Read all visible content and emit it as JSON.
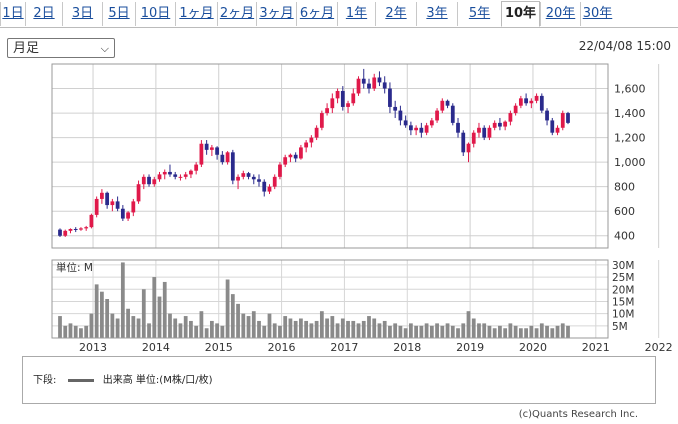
{
  "tabs": [
    "1日",
    "2日",
    "3日",
    "5日",
    "10日",
    "1ヶ月",
    "2ヶ月",
    "3ヶ月",
    "6ヶ月",
    "1年",
    "2年",
    "3年",
    "5年",
    "10年",
    "20年",
    "30年"
  ],
  "active_tab": "10年",
  "period_select": "月足",
  "timestamp": "22/04/08 15:00",
  "legend": {
    "prefix": "下段:",
    "series": "出来高 単位:(M株/口/枚)"
  },
  "copyright": "(c)Quants Research Inc.",
  "colors": {
    "up": "#e0194a",
    "down": "#2a2a8c",
    "volume": "#8a8a8a"
  },
  "chart_data": [
    {
      "type": "candlestick",
      "ylim": [
        300,
        1800
      ],
      "y_ticks": [
        "1,600",
        "1,400",
        "1,200",
        "1,000",
        "800",
        "600",
        "400"
      ],
      "y_tick_values": [
        1600,
        1400,
        1200,
        1000,
        800,
        600,
        400
      ],
      "x_tick_labels": [
        "2013",
        "2014",
        "2015",
        "2016",
        "2017",
        "2018",
        "2019",
        "2020",
        "2021",
        "2022"
      ],
      "x_start": "2012-06",
      "ohlc": [
        [
          450,
          460,
          390,
          400
        ],
        [
          400,
          450,
          390,
          440
        ],
        [
          440,
          460,
          420,
          455
        ],
        [
          455,
          470,
          430,
          450
        ],
        [
          450,
          470,
          440,
          460
        ],
        [
          460,
          480,
          440,
          470
        ],
        [
          470,
          580,
          460,
          570
        ],
        [
          570,
          720,
          550,
          700
        ],
        [
          700,
          780,
          660,
          750
        ],
        [
          750,
          760,
          620,
          650
        ],
        [
          650,
          700,
          600,
          680
        ],
        [
          680,
          720,
          600,
          620
        ],
        [
          620,
          650,
          520,
          540
        ],
        [
          540,
          600,
          520,
          590
        ],
        [
          590,
          700,
          560,
          680
        ],
        [
          680,
          850,
          660,
          820
        ],
        [
          820,
          900,
          780,
          880
        ],
        [
          880,
          900,
          800,
          820
        ],
        [
          820,
          880,
          800,
          860
        ],
        [
          860,
          920,
          840,
          900
        ],
        [
          900,
          940,
          860,
          920
        ],
        [
          920,
          980,
          880,
          900
        ],
        [
          900,
          920,
          860,
          880
        ],
        [
          880,
          900,
          850,
          880
        ],
        [
          880,
          920,
          860,
          900
        ],
        [
          900,
          940,
          870,
          930
        ],
        [
          930,
          1000,
          900,
          980
        ],
        [
          980,
          1180,
          960,
          1150
        ],
        [
          1150,
          1180,
          1060,
          1100
        ],
        [
          1100,
          1140,
          1050,
          1120
        ],
        [
          1120,
          1130,
          1020,
          1060
        ],
        [
          1060,
          1090,
          980,
          1000
        ],
        [
          1000,
          1090,
          980,
          1080
        ],
        [
          1080,
          1100,
          820,
          850
        ],
        [
          850,
          900,
          780,
          880
        ],
        [
          880,
          930,
          860,
          910
        ],
        [
          910,
          920,
          860,
          880
        ],
        [
          880,
          900,
          820,
          860
        ],
        [
          860,
          900,
          800,
          840
        ],
        [
          840,
          860,
          720,
          760
        ],
        [
          760,
          820,
          740,
          800
        ],
        [
          800,
          900,
          780,
          880
        ],
        [
          880,
          1000,
          860,
          980
        ],
        [
          980,
          1060,
          960,
          1040
        ],
        [
          1040,
          1070,
          1000,
          1060
        ],
        [
          1060,
          1080,
          1000,
          1030
        ],
        [
          1030,
          1140,
          1020,
          1120
        ],
        [
          1120,
          1180,
          1080,
          1160
        ],
        [
          1160,
          1220,
          1120,
          1200
        ],
        [
          1200,
          1300,
          1180,
          1280
        ],
        [
          1280,
          1420,
          1260,
          1400
        ],
        [
          1400,
          1480,
          1380,
          1440
        ],
        [
          1440,
          1560,
          1400,
          1520
        ],
        [
          1520,
          1600,
          1480,
          1580
        ],
        [
          1580,
          1620,
          1420,
          1450
        ],
        [
          1450,
          1500,
          1400,
          1480
        ],
        [
          1480,
          1600,
          1460,
          1560
        ],
        [
          1560,
          1700,
          1540,
          1680
        ],
        [
          1680,
          1760,
          1600,
          1640
        ],
        [
          1640,
          1680,
          1560,
          1600
        ],
        [
          1600,
          1720,
          1580,
          1690
        ],
        [
          1690,
          1740,
          1620,
          1650
        ],
        [
          1650,
          1700,
          1560,
          1600
        ],
        [
          1600,
          1650,
          1400,
          1450
        ],
        [
          1450,
          1500,
          1360,
          1420
        ],
        [
          1420,
          1460,
          1300,
          1340
        ],
        [
          1340,
          1380,
          1280,
          1300
        ],
        [
          1300,
          1330,
          1220,
          1260
        ],
        [
          1260,
          1300,
          1220,
          1280
        ],
        [
          1280,
          1320,
          1200,
          1240
        ],
        [
          1240,
          1320,
          1220,
          1300
        ],
        [
          1300,
          1360,
          1280,
          1340
        ],
        [
          1340,
          1440,
          1320,
          1420
        ],
        [
          1420,
          1520,
          1400,
          1500
        ],
        [
          1500,
          1510,
          1440,
          1460
        ],
        [
          1460,
          1480,
          1300,
          1320
        ],
        [
          1320,
          1360,
          1200,
          1240
        ],
        [
          1240,
          1260,
          1050,
          1080
        ],
        [
          1080,
          1160,
          1000,
          1150
        ],
        [
          1150,
          1260,
          1120,
          1240
        ],
        [
          1240,
          1320,
          1200,
          1280
        ],
        [
          1280,
          1300,
          1180,
          1200
        ],
        [
          1200,
          1300,
          1180,
          1280
        ],
        [
          1280,
          1340,
          1260,
          1320
        ],
        [
          1320,
          1360,
          1260,
          1290
        ],
        [
          1290,
          1340,
          1260,
          1330
        ],
        [
          1330,
          1420,
          1300,
          1400
        ],
        [
          1400,
          1480,
          1380,
          1460
        ],
        [
          1460,
          1540,
          1440,
          1520
        ],
        [
          1520,
          1560,
          1460,
          1480
        ],
        [
          1480,
          1520,
          1440,
          1500
        ],
        [
          1500,
          1560,
          1480,
          1540
        ],
        [
          1540,
          1560,
          1400,
          1420
        ],
        [
          1420,
          1440,
          1300,
          1340
        ],
        [
          1340,
          1360,
          1220,
          1240
        ],
        [
          1240,
          1300,
          1220,
          1280
        ],
        [
          1280,
          1420,
          1260,
          1400
        ],
        [
          1400,
          1410,
          1310,
          1320
        ]
      ],
      "volume_ylim": [
        0,
        32
      ],
      "volume_ticks": [
        "30M",
        "25M",
        "20M",
        "15M",
        "10M",
        "5M"
      ],
      "volume_tick_values": [
        30,
        25,
        20,
        15,
        10,
        5
      ],
      "volume_label": "単位: M",
      "volume": [
        9,
        5,
        6,
        5,
        4,
        5,
        10,
        22,
        19,
        16,
        10,
        8,
        31,
        12,
        9,
        8,
        20,
        6,
        25,
        17,
        23,
        10,
        8,
        6,
        9,
        7,
        5,
        11,
        4,
        7,
        6,
        5,
        24,
        18,
        14,
        10,
        9,
        11,
        7,
        5,
        10,
        6,
        5,
        9,
        8,
        7,
        8,
        7,
        6,
        7,
        11,
        8,
        9,
        6,
        8,
        7,
        7,
        6,
        7,
        9,
        8,
        6,
        7,
        5,
        6,
        5,
        4,
        6,
        5,
        5,
        6,
        5,
        6,
        5,
        6,
        5,
        4,
        6,
        11,
        8,
        6,
        6,
        5,
        4,
        5,
        4,
        6,
        5,
        4,
        4,
        5,
        4,
        6,
        5,
        4,
        5,
        6,
        5
      ]
    }
  ]
}
